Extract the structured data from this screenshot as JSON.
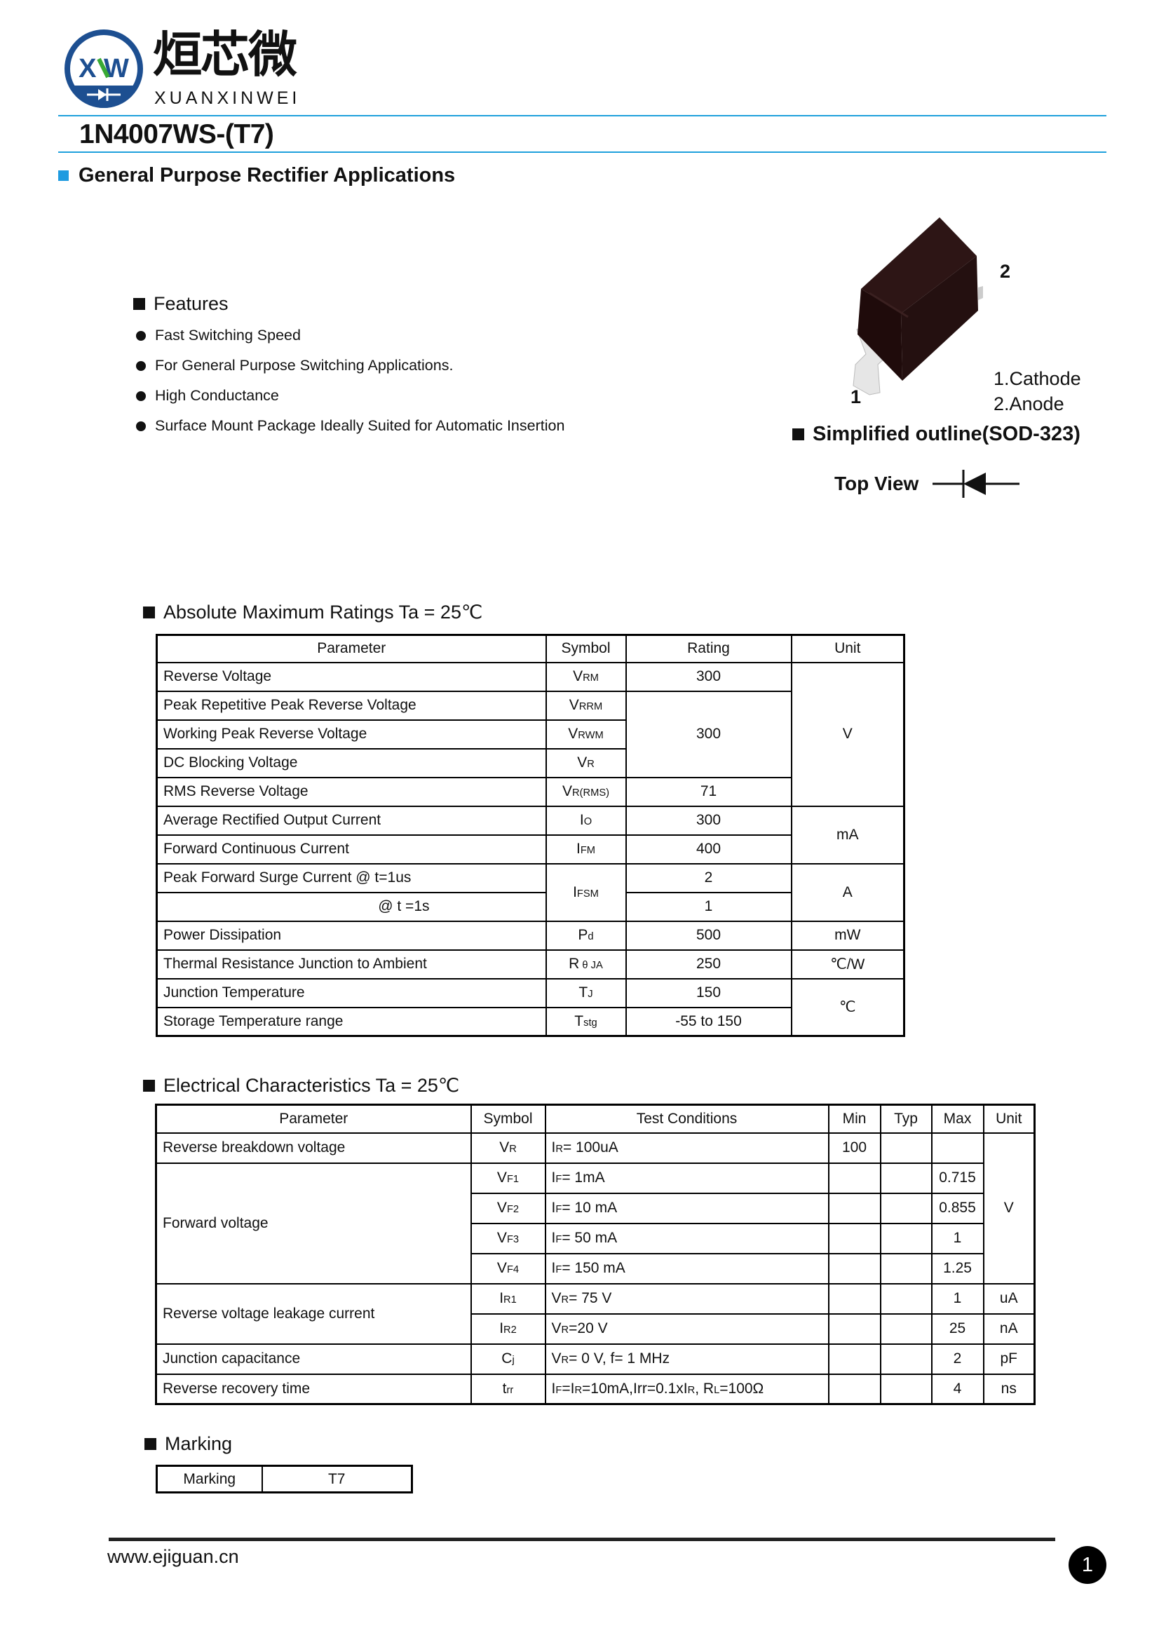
{
  "logo": {
    "mark": "XW",
    "chinese": "烜芯微",
    "latin": "XUANXINWEI"
  },
  "colors": {
    "accent_blue": "#1ea0dc",
    "logo_blue": "#1d4f91",
    "logo_green": "#3aaa35",
    "package_body": "#241010"
  },
  "title": "1N4007WS-(T7)",
  "subtitle": "General Purpose Rectifier Applications",
  "features": {
    "heading": "Features",
    "items": [
      "Fast Switching Speed",
      "For General Purpose Switching Applications.",
      "High Conductance",
      "Surface Mount Package Ideally Suited for Automatic Insertion"
    ]
  },
  "package": {
    "pin2": "2",
    "pin1": "1",
    "pin_legend": [
      "1.Cathode",
      "2.Anode"
    ],
    "outline_label": "Simplified outline(SOD-323)",
    "top_view": "Top View",
    "diode_icon": "diode-symbol"
  },
  "absolute_max": {
    "heading": "Absolute Maximum Ratings Ta = 25℃",
    "headers": [
      "Parameter",
      "Symbol",
      "Rating",
      "Unit"
    ],
    "rows": [
      {
        "param": "Reverse  Voltage",
        "symbol": [
          {
            "text": "V"
          },
          {
            "text": "RM",
            "sub": true
          }
        ],
        "rating": "300",
        "unit": "V"
      },
      {
        "param": "Peak Repetitive Peak Reverse Voltage",
        "symbol": [
          {
            "text": "V"
          },
          {
            "text": "RRM",
            "sub": true
          }
        ],
        "rating": "300"
      },
      {
        "param": "Working Peak Reverse Voltage",
        "symbol": [
          {
            "text": "V"
          },
          {
            "text": "RWM",
            "sub": true
          }
        ]
      },
      {
        "param": "DC Blocking Voltage",
        "symbol": [
          {
            "text": "V"
          },
          {
            "text": "R",
            "sub": true
          }
        ]
      },
      {
        "param": "RMS Reverse Voltage",
        "symbol": [
          {
            "text": "V"
          },
          {
            "text": "R(RMS)",
            "sub": true
          }
        ],
        "rating": "71"
      },
      {
        "param": "Average Rectified Output Current",
        "symbol": [
          {
            "text": "I"
          },
          {
            "text": "O",
            "sub": true
          }
        ],
        "rating": "300",
        "unit": "mA"
      },
      {
        "param": "Forward Continuous Current",
        "symbol": [
          {
            "text": "I"
          },
          {
            "text": "FM",
            "sub": true
          }
        ],
        "rating": "400"
      },
      {
        "param": "Peak Forward Surge Current @  t=1us",
        "symbol": [
          {
            "text": "I"
          },
          {
            "text": "FSM",
            "sub": true
          }
        ],
        "rating": "2",
        "unit": "A"
      },
      {
        "param": "@  t =1s",
        "rating": "1"
      },
      {
        "param": "Power Dissipation",
        "symbol": [
          {
            "text": "P"
          },
          {
            "text": "d",
            "sub": true
          }
        ],
        "rating": "500",
        "unit": "mW"
      },
      {
        "param": "Thermal Resistance Junction to Ambient",
        "symbol": [
          {
            "text": "R"
          },
          {
            "text": " θ JA",
            "sub": true
          }
        ],
        "rating": "250",
        "unit": "℃/W"
      },
      {
        "param": "Junction Temperature",
        "symbol": [
          {
            "text": "T"
          },
          {
            "text": "J",
            "sub": true
          }
        ],
        "rating": "150",
        "unit": "℃"
      },
      {
        "param": "Storage Temperature range",
        "symbol": [
          {
            "text": "T"
          },
          {
            "text": "stg",
            "sub": true
          }
        ],
        "rating": "-55 to 150"
      }
    ]
  },
  "electrical": {
    "heading": "Electrical Characteristics Ta = 25℃",
    "headers": [
      "Parameter",
      "Symbol",
      "Test Conditions",
      "Min",
      "Typ",
      "Max",
      "Unit"
    ],
    "rows": [
      {
        "param": "Reverse breakdown voltage",
        "symbol": [
          {
            "text": "V"
          },
          {
            "text": "R",
            "sub": true
          }
        ],
        "cond": [
          {
            "text": "I"
          },
          {
            "text": "R",
            "sub": true
          },
          {
            "text": "= 100uA"
          }
        ],
        "min": "100",
        "typ": "",
        "max": "",
        "unit": "V"
      },
      {
        "param": "Forward voltage",
        "symbol": [
          {
            "text": "V"
          },
          {
            "text": "F1",
            "sub": true
          }
        ],
        "cond": [
          {
            "text": "I"
          },
          {
            "text": "F",
            "sub": true
          },
          {
            "text": "= 1mA"
          }
        ],
        "min": "",
        "typ": "",
        "max": "0.715"
      },
      {
        "symbol": [
          {
            "text": "V"
          },
          {
            "text": "F2",
            "sub": true
          }
        ],
        "cond": [
          {
            "text": "I"
          },
          {
            "text": "F",
            "sub": true
          },
          {
            "text": "= 10 mA"
          }
        ],
        "min": "",
        "typ": "",
        "max": "0.855"
      },
      {
        "symbol": [
          {
            "text": "V"
          },
          {
            "text": "F3",
            "sub": true
          }
        ],
        "cond": [
          {
            "text": "I"
          },
          {
            "text": "F",
            "sub": true
          },
          {
            "text": "= 50 mA"
          }
        ],
        "min": "",
        "typ": "",
        "max": "1"
      },
      {
        "symbol": [
          {
            "text": "V"
          },
          {
            "text": "F4",
            "sub": true
          }
        ],
        "cond": [
          {
            "text": "I"
          },
          {
            "text": "F",
            "sub": true
          },
          {
            "text": "= 150 mA"
          }
        ],
        "min": "",
        "typ": "",
        "max": "1.25"
      },
      {
        "param": "Reverse voltage leakage current",
        "symbol": [
          {
            "text": "I"
          },
          {
            "text": "R1",
            "sub": true
          }
        ],
        "cond": [
          {
            "text": "V"
          },
          {
            "text": "R",
            "sub": true
          },
          {
            "text": "= 75 V"
          }
        ],
        "min": "",
        "typ": "",
        "max": "1",
        "unit": "uA"
      },
      {
        "symbol": [
          {
            "text": "I"
          },
          {
            "text": "R2",
            "sub": true
          }
        ],
        "cond": [
          {
            "text": "V"
          },
          {
            "text": "R",
            "sub": true
          },
          {
            "text": "=20 V"
          }
        ],
        "min": "",
        "typ": "",
        "max": "25",
        "unit": "nA"
      },
      {
        "param": "Junction  capacitance",
        "symbol": [
          {
            "text": "C"
          },
          {
            "text": "j",
            "sub": true
          }
        ],
        "cond": [
          {
            "text": "V"
          },
          {
            "text": "R",
            "sub": true
          },
          {
            "text": "= 0 V, f= 1 MHz"
          }
        ],
        "min": "",
        "typ": "",
        "max": "2",
        "unit": "pF"
      },
      {
        "param": "Reverse recovery time",
        "symbol": [
          {
            "text": "t"
          },
          {
            "text": "rr",
            "sub": true
          }
        ],
        "cond": [
          {
            "text": "I"
          },
          {
            "text": "F",
            "sub": true
          },
          {
            "text": "=I"
          },
          {
            "text": "R",
            "sub": true
          },
          {
            "text": "=10mA,Irr=0.1xI"
          },
          {
            "text": "R",
            "sub": true
          },
          {
            "text": ", R"
          },
          {
            "text": "L",
            "sub": true
          },
          {
            "text": "=100Ω"
          }
        ],
        "min": "",
        "typ": "",
        "max": "4",
        "unit": "ns"
      }
    ]
  },
  "marking": {
    "heading": "Marking",
    "label": "Marking",
    "value": "T7"
  },
  "footer": {
    "website": "www.ejiguan.cn",
    "page_number": "1"
  }
}
